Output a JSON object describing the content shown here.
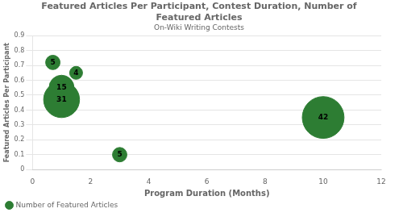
{
  "chart_data": {
    "type": "bubble",
    "title": "Featured Articles Per Participant, Contest Duration, Number of\nFeatured Articles",
    "subtitle": "On-Wiki Writing Contests",
    "xlabel": "Program Duration (Months)",
    "ylabel": "Featured Articles Per Participant",
    "xlim": [
      0,
      12
    ],
    "ylim": [
      0,
      0.9
    ],
    "xticks": [
      0,
      2,
      4,
      6,
      8,
      10,
      12
    ],
    "yticks": [
      0,
      0.1,
      0.2,
      0.3,
      0.4,
      0.5,
      0.6,
      0.7,
      0.8,
      0.9
    ],
    "series": [
      {
        "name": "Number of Featured Articles",
        "color": "#2d7d33",
        "x": [
          0.7,
          1.5,
          1.0,
          1.0,
          3.0,
          10.0
        ],
        "values": [
          0.72,
          0.65,
          0.55,
          0.47,
          0.1,
          0.35
        ],
        "sizes": [
          5,
          4,
          15,
          31,
          5,
          42
        ]
      }
    ],
    "data_labels": true,
    "grid": "y",
    "legend": "lower left"
  }
}
